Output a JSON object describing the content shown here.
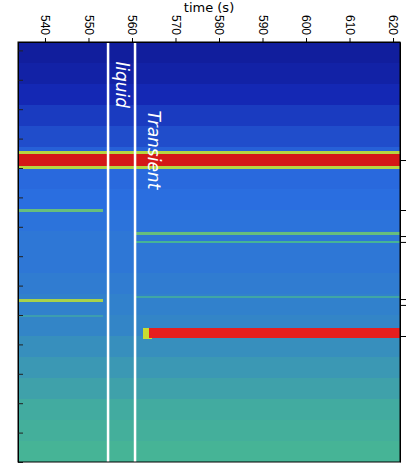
{
  "chart_data": {
    "type": "heatmap",
    "xlabel": "time (s)",
    "xlim": [
      533.8,
      621.6
    ],
    "xticks": [
      540,
      550,
      560,
      570,
      580,
      590,
      600,
      610,
      620
    ],
    "ylim": [
      0,
      100
    ],
    "yticks": [
      0,
      7,
      14,
      21,
      28,
      35,
      42,
      49,
      56,
      63,
      70,
      77,
      84,
      91,
      98
    ],
    "y2lim": [
      0,
      100
    ],
    "y2ticks": [
      71.9,
      60.0,
      53.8,
      52.4,
      38.8,
      37.4,
      30.0
    ],
    "tick_labels": "x",
    "zlim": [
      0,
      1
    ],
    "vlines": [
      554.5,
      560.7
    ],
    "annotations": [
      {
        "text": "liquid",
        "x": 557.6,
        "y": 89.8
      },
      {
        "text": "Transient",
        "x": 565.0,
        "y": 74.3
      }
    ],
    "cells": [
      {
        "t0": 533.8,
        "t1": 621.6,
        "y0": 95,
        "y1": 100,
        "value": 0.1
      },
      {
        "t0": 533.8,
        "t1": 621.6,
        "y0": 90,
        "y1": 95,
        "value": 0.12
      },
      {
        "t0": 533.8,
        "t1": 621.6,
        "y0": 85,
        "y1": 90,
        "value": 0.15
      },
      {
        "t0": 533.8,
        "t1": 621.6,
        "y0": 80,
        "y1": 85,
        "value": 0.19
      },
      {
        "t0": 533.8,
        "t1": 621.6,
        "y0": 75,
        "y1": 80,
        "value": 0.23
      },
      {
        "t0": 533.8,
        "t1": 621.6,
        "y0": 70,
        "y1": 75,
        "value": 0.27
      },
      {
        "t0": 533.8,
        "t1": 621.6,
        "y0": 65,
        "y1": 70,
        "value": 0.29
      },
      {
        "t0": 533.8,
        "t1": 621.6,
        "y0": 60,
        "y1": 65,
        "value": 0.3
      },
      {
        "t0": 533.8,
        "t1": 621.6,
        "y0": 55,
        "y1": 60,
        "value": 0.31
      },
      {
        "t0": 533.8,
        "t1": 621.6,
        "y0": 50,
        "y1": 55,
        "value": 0.32
      },
      {
        "t0": 533.8,
        "t1": 621.6,
        "y0": 45,
        "y1": 50,
        "value": 0.32
      },
      {
        "t0": 533.8,
        "t1": 621.6,
        "y0": 40,
        "y1": 45,
        "value": 0.33
      },
      {
        "t0": 533.8,
        "t1": 621.6,
        "y0": 35,
        "y1": 40,
        "value": 0.34
      },
      {
        "t0": 533.8,
        "t1": 621.6,
        "y0": 30,
        "y1": 35,
        "value": 0.35
      },
      {
        "t0": 533.8,
        "t1": 621.6,
        "y0": 25,
        "y1": 30,
        "value": 0.37
      },
      {
        "t0": 533.8,
        "t1": 621.6,
        "y0": 20,
        "y1": 25,
        "value": 0.39
      },
      {
        "t0": 533.8,
        "t1": 621.6,
        "y0": 15,
        "y1": 20,
        "value": 0.41
      },
      {
        "t0": 533.8,
        "t1": 621.6,
        "y0": 10,
        "y1": 15,
        "value": 0.43
      },
      {
        "t0": 533.8,
        "t1": 621.6,
        "y0": 5,
        "y1": 10,
        "value": 0.44
      },
      {
        "t0": 533.8,
        "t1": 621.6,
        "y0": 0,
        "y1": 5,
        "value": 0.45
      },
      {
        "t0": 533.8,
        "t1": 621.6,
        "y0": 69.8,
        "y1": 74.0,
        "value": 0.62
      },
      {
        "t0": 533.8,
        "t1": 621.6,
        "y0": 70.5,
        "y1": 73.3,
        "value": 0.92
      },
      {
        "t0": 533.8,
        "t1": 553.3,
        "y0": 59.6,
        "y1": 60.3,
        "value": 0.5
      },
      {
        "t0": 533.8,
        "t1": 553.3,
        "y0": 38.0,
        "y1": 38.7,
        "value": 0.6
      },
      {
        "t0": 533.8,
        "t1": 553.3,
        "y0": 34.6,
        "y1": 35.0,
        "value": 0.4
      },
      {
        "t0": 561.0,
        "t1": 621.6,
        "y0": 54.1,
        "y1": 54.7,
        "value": 0.5
      },
      {
        "t0": 561.0,
        "t1": 621.6,
        "y0": 52.2,
        "y1": 52.7,
        "value": 0.45
      },
      {
        "t0": 561.0,
        "t1": 621.6,
        "y0": 39.1,
        "y1": 39.5,
        "value": 0.42
      },
      {
        "t0": 562.5,
        "t1": 564.5,
        "y0": 29.3,
        "y1": 32.0,
        "value": 0.65
      },
      {
        "t0": 564.0,
        "t1": 621.6,
        "y0": 29.6,
        "y1": 31.8,
        "value": 0.9
      }
    ]
  }
}
